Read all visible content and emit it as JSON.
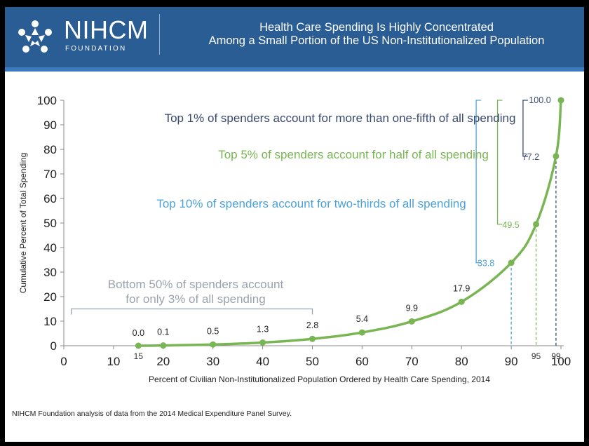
{
  "header": {
    "logo_name": "NIHCM",
    "logo_sub": "FOUNDATION",
    "title_line1": "Health Care Spending Is Highly Concentrated",
    "title_line2": "Among a Small Portion of the US Non-Institutionalized Population"
  },
  "colors": {
    "header_bg": "#2a5d94",
    "curve": "#7ab553",
    "top1": "#3a4a6e",
    "top5": "#7ab553",
    "top10": "#4ca3d8",
    "bottom50": "#9aa2ad"
  },
  "chart_data": {
    "type": "line",
    "title": "Health Care Spending Is Highly Concentrated Among a Small Portion of the US Non-Institutionalized Population",
    "xlabel": "Percent of Civilian Non-Institutionalized Population Ordered by Health Care Spending, 2014",
    "ylabel": "Cumulative Percent of Total Spending",
    "xlim": [
      0,
      100
    ],
    "ylim": [
      0,
      100
    ],
    "xticks": [
      0,
      10,
      20,
      30,
      40,
      50,
      60,
      70,
      80,
      90,
      100
    ],
    "yticks": [
      0,
      10,
      20,
      30,
      40,
      50,
      60,
      70,
      80,
      90,
      100
    ],
    "points": [
      {
        "x": 15,
        "y": 0.0,
        "label": "0.0"
      },
      {
        "x": 20,
        "y": 0.1,
        "label": "0.1"
      },
      {
        "x": 30,
        "y": 0.5,
        "label": "0.5"
      },
      {
        "x": 40,
        "y": 1.3,
        "label": "1.3"
      },
      {
        "x": 50,
        "y": 2.8,
        "label": "2.8"
      },
      {
        "x": 60,
        "y": 5.4,
        "label": "5.4"
      },
      {
        "x": 70,
        "y": 9.9,
        "label": "9.9"
      },
      {
        "x": 80,
        "y": 17.9,
        "label": "17.9"
      },
      {
        "x": 90,
        "y": 33.8,
        "label": "33.8"
      },
      {
        "x": 95,
        "y": 49.5,
        "label": "49.5"
      },
      {
        "x": 99,
        "y": 77.2,
        "label": "77.2"
      },
      {
        "x": 100,
        "y": 100.0,
        "label": "100.0"
      }
    ],
    "extra_x_labels": [
      "15",
      "95",
      "99"
    ],
    "annotations": {
      "top1": "Top 1% of spenders account for more than one-fifth of all spending",
      "top5": "Top 5% of spenders account for half of all spending",
      "top10": "Top 10% of spenders account for two-thirds of all spending",
      "bottom50_line1": "Bottom 50% of spenders account",
      "bottom50_line2": "for only 3% of all spending"
    }
  },
  "footnote": "NIHCM Foundation analysis of data from the 2014 Medical Expenditure Panel Survey."
}
